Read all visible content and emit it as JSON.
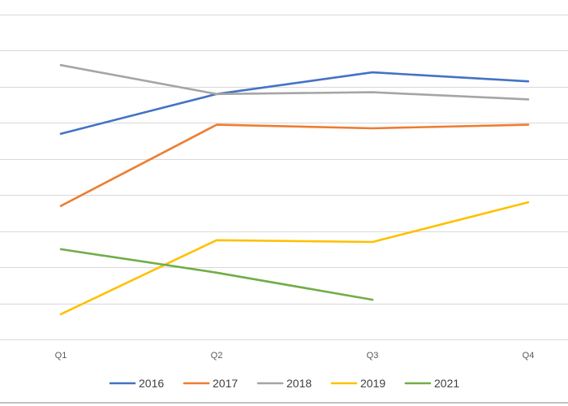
{
  "chart_data": {
    "type": "line",
    "title": "",
    "xlabel": "",
    "ylabel": "",
    "categories": [
      "Q1",
      "Q2",
      "Q3",
      "Q4"
    ],
    "ylim": [
      0,
      9
    ],
    "y_gridlines": 9,
    "y_tick_labels_visible": false,
    "grid": true,
    "legend_position": "bottom",
    "series": [
      {
        "name": "2016",
        "color": "#4472C4",
        "values": [
          5.7,
          6.8,
          7.4,
          7.15
        ]
      },
      {
        "name": "2017",
        "color": "#ED7D31",
        "values": [
          3.7,
          5.95,
          5.85,
          5.95
        ]
      },
      {
        "name": "2018",
        "color": "#A5A5A5",
        "values": [
          7.6,
          6.8,
          6.85,
          6.65
        ]
      },
      {
        "name": "2019",
        "color": "#FFC000",
        "values": [
          0.7,
          2.75,
          2.7,
          3.8
        ]
      },
      {
        "name": "2021",
        "color": "#70AD47",
        "values": [
          2.5,
          1.85,
          1.1,
          null
        ]
      }
    ]
  }
}
